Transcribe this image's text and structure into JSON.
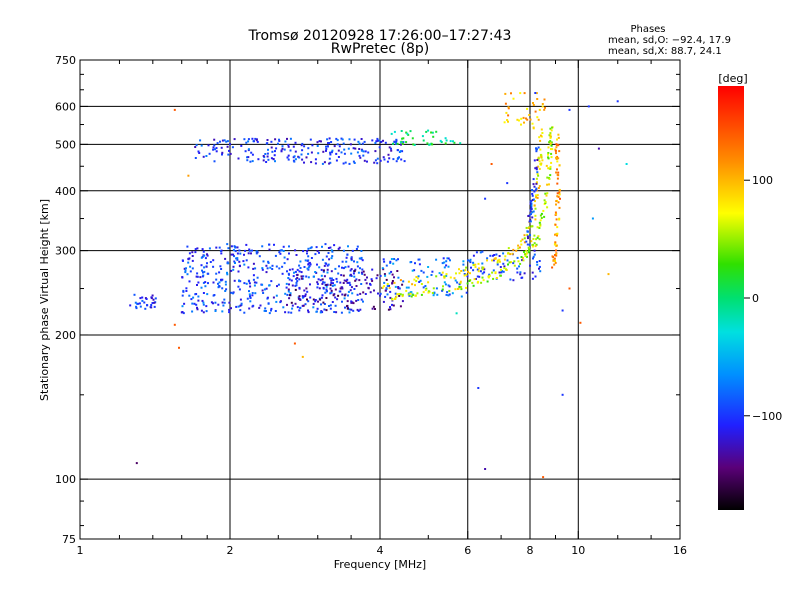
{
  "chart_data": {
    "type": "scatter",
    "title": "Tromsø 20120928 17:26:00–17:27:43",
    "subtitle": "RwPretec (8p)",
    "xlabel": "Frequency [MHz]",
    "ylabel": "Stationary phase Virtual Height [km]",
    "x_scale": "log",
    "y_scale": "log",
    "xlim": [
      1,
      16
    ],
    "ylim": [
      75,
      750
    ],
    "x_ticks": [
      {
        "value": 1,
        "label": "1"
      },
      {
        "value": 2,
        "label": "2"
      },
      {
        "value": 4,
        "label": "4"
      },
      {
        "value": 6,
        "label": "6"
      },
      {
        "value": 8,
        "label": "8"
      },
      {
        "value": 10,
        "label": "10"
      },
      {
        "value": 16,
        "label": "16"
      }
    ],
    "y_ticks": [
      {
        "value": 75,
        "label": "75"
      },
      {
        "value": 100,
        "label": "100"
      },
      {
        "value": 200,
        "label": "200"
      },
      {
        "value": 300,
        "label": "300"
      },
      {
        "value": 400,
        "label": "400"
      },
      {
        "value": 500,
        "label": "500"
      },
      {
        "value": 600,
        "label": "600"
      },
      {
        "value": 750,
        "label": "750"
      }
    ],
    "x_grid": [
      2,
      4,
      6,
      8,
      10
    ],
    "y_grid": [
      100,
      200,
      300,
      400,
      500,
      600
    ],
    "grid": true,
    "stats_header": "Phases",
    "stats": [
      "mean, sd,O: −92.4, 17.9",
      "mean, sd,X:  88.7, 24.1"
    ],
    "colorbar": {
      "label": "[deg]",
      "range": [
        -180,
        180
      ],
      "ticks": [
        {
          "value": 100,
          "label": "100"
        },
        {
          "value": 0,
          "label": "0"
        },
        {
          "value": -100,
          "label": "−100"
        }
      ]
    },
    "clusters": [
      {
        "x_range": [
          1.26,
          1.42
        ],
        "y_range": [
          225,
          245
        ],
        "phase": -100,
        "count": 30
      },
      {
        "x_range": [
          1.6,
          3.7
        ],
        "y_range": [
          222,
          310
        ],
        "phase": -95,
        "count": 520
      },
      {
        "x_range": [
          2.6,
          4.5
        ],
        "y_range": [
          225,
          275
        ],
        "phase": -130,
        "count": 140
      },
      {
        "x_range": [
          4.0,
          6.0
        ],
        "y_range": [
          240,
          290
        ],
        "phase": -80,
        "count": 90
      },
      {
        "x_range": [
          1.7,
          4.5
        ],
        "y_range": [
          455,
          515
        ],
        "phase": -100,
        "count": 240
      },
      {
        "x_range": [
          4.2,
          5.8
        ],
        "y_range": [
          495,
          535
        ],
        "phase": 0,
        "count": 40
      },
      {
        "x_range": [
          6.0,
          8.5
        ],
        "y_range": [
          260,
          300
        ],
        "phase": -100,
        "count": 70
      },
      {
        "x_range": [
          7.0,
          8.6
        ],
        "y_range": [
          540,
          640
        ],
        "phase": 100,
        "count": 40
      }
    ],
    "curves": [
      {
        "name": "",
        "points": [
          [
            4.2,
            240
          ],
          [
            5.0,
            248
          ],
          [
            6.0,
            256
          ],
          [
            7.0,
            270
          ],
          [
            7.8,
            290
          ],
          [
            8.3,
            320
          ],
          [
            8.6,
            380
          ],
          [
            8.75,
            460
          ],
          [
            8.85,
            540
          ]
        ],
        "phase": 60,
        "count": 160
      },
      {
        "name": "",
        "points": [
          [
            4.0,
            252
          ],
          [
            5.0,
            262
          ],
          [
            6.0,
            272
          ],
          [
            7.0,
            288
          ],
          [
            7.7,
            310
          ],
          [
            8.1,
            345
          ],
          [
            8.3,
            400
          ],
          [
            8.4,
            470
          ],
          [
            8.45,
            540
          ]
        ],
        "phase": 80,
        "count": 120
      },
      {
        "name": "",
        "points": [
          [
            8.9,
            280
          ],
          [
            9.05,
            320
          ],
          [
            9.1,
            380
          ],
          [
            9.1,
            440
          ],
          [
            9.05,
            520
          ]
        ],
        "phase": 110,
        "count": 70
      },
      {
        "name": "",
        "points": [
          [
            7.9,
            310
          ],
          [
            8.05,
            360
          ],
          [
            8.2,
            420
          ],
          [
            8.3,
            500
          ]
        ],
        "phase": -100,
        "count": 50
      }
    ],
    "outliers": [
      [
        1.3,
        108,
        -150
      ],
      [
        1.55,
        590,
        140
      ],
      [
        1.55,
        210,
        140
      ],
      [
        1.58,
        188,
        140
      ],
      [
        1.65,
        430,
        110
      ],
      [
        2.7,
        192,
        140
      ],
      [
        2.8,
        180,
        100
      ],
      [
        5.7,
        222,
        -20
      ],
      [
        6.3,
        155,
        -100
      ],
      [
        6.5,
        105,
        -130
      ],
      [
        6.5,
        385,
        -100
      ],
      [
        6.7,
        455,
        140
      ],
      [
        7.2,
        415,
        -100
      ],
      [
        8.5,
        101,
        140
      ],
      [
        9.3,
        150,
        -100
      ],
      [
        9.3,
        225,
        -100
      ],
      [
        10.1,
        212,
        140
      ],
      [
        10.7,
        350,
        -60
      ],
      [
        10.5,
        600,
        -100
      ],
      [
        11.0,
        490,
        -130
      ],
      [
        11.5,
        268,
        100
      ],
      [
        12.0,
        615,
        -100
      ],
      [
        12.5,
        455,
        -30
      ],
      [
        9.6,
        590,
        -100
      ],
      [
        8.2,
        640,
        -100
      ],
      [
        9.6,
        250,
        140
      ]
    ]
  }
}
